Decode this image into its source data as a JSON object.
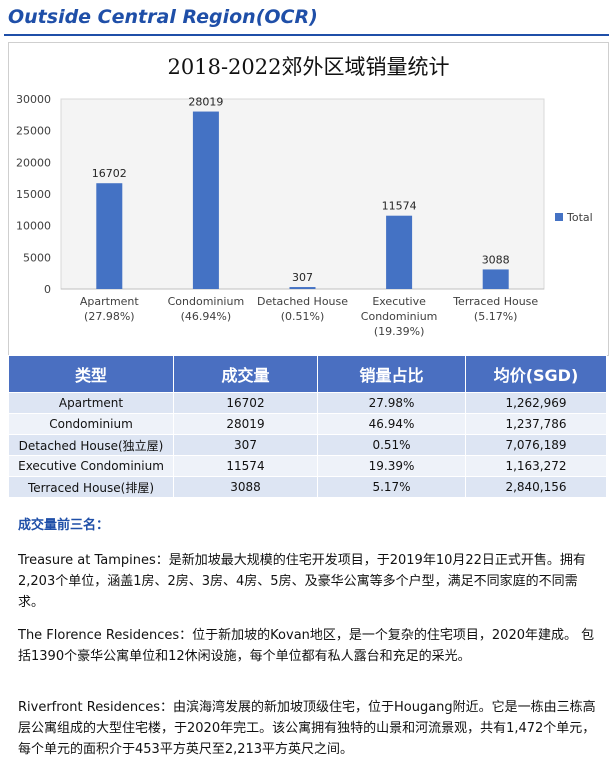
{
  "header": {
    "title": "Outside Central Region(OCR)"
  },
  "chart_data": {
    "type": "bar",
    "title": "2018-2022郊外区域销量统计",
    "categories": [
      "Apartment",
      "Condominium",
      "Detached House",
      "Executive Condominium",
      "Terraced House"
    ],
    "category_labels": [
      [
        "Apartment",
        "(27.98%)"
      ],
      [
        "Condominium",
        "(46.94%)"
      ],
      [
        "Detached House",
        "(0.51%)"
      ],
      [
        "Executive",
        "Condominium",
        "(19.39%)"
      ],
      [
        "Terraced House",
        "(5.17%)"
      ]
    ],
    "series": [
      {
        "name": "Total",
        "values": [
          16702,
          28019,
          307,
          11574,
          3088
        ]
      }
    ],
    "ylim": [
      0,
      30000
    ],
    "yticks": [
      0,
      5000,
      10000,
      15000,
      20000,
      25000,
      30000
    ],
    "grid": false,
    "legend": "right",
    "bar_color": "#4472c4"
  },
  "table": {
    "headers": [
      "类型",
      "成交量",
      "销量占比",
      "均价(SGD)"
    ],
    "rows": [
      [
        "Apartment",
        "16702",
        "27.98%",
        "1,262,969"
      ],
      [
        "Condominium",
        "28019",
        "46.94%",
        "1,237,786"
      ],
      [
        "Detached House(独立屋)",
        "307",
        "0.51%",
        "7,076,189"
      ],
      [
        "Executive Condominium",
        "11574",
        "19.39%",
        "1,163,272"
      ],
      [
        "Terraced House(排屋)",
        "3088",
        "5.17%",
        "2,840,156"
      ]
    ]
  },
  "top3": {
    "title": "成交量前三名：",
    "p1": "Treasure at Tampines：是新加坡最大规模的住宅开发项目，于2019年10月22日正式开售。拥有2,203个单位，涵盖1房、2房、3房、4房、5房、及豪华公寓等多个户型，满足不同家庭的不同需求。",
    "p2": "The Florence Residences：位于新加坡的Kovan地区，是一个复杂的住宅项目，2020年建成。 包括1390个豪华公寓单位和12休闲设施，每个单位都有私人露台和充足的采光。",
    "p3": "Riverfront Residences：由滨海湾发展的新加坡顶级住宅，位于Hougang附近。它是一栋由三栋高层公寓组成的大型住宅楼，于2020年完工。该公寓拥有独特的山景和河流景观，共有1,472个单元，每个单元的面积介于453平方英尺至2,213平方英尺之间。"
  }
}
